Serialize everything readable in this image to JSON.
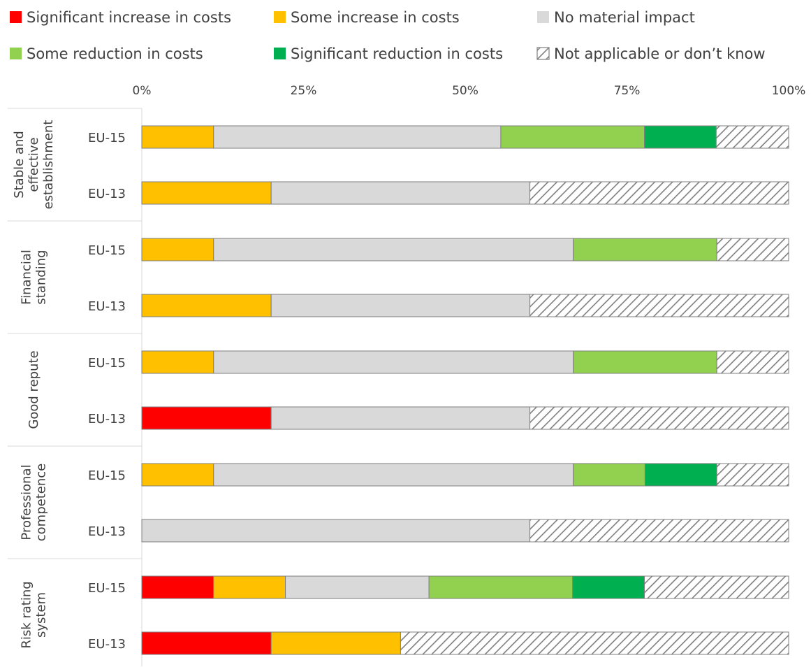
{
  "chart_data": {
    "type": "bar",
    "orientation": "horizontal",
    "stacked": "percent",
    "title": "",
    "xlabel": "",
    "ylabel": "",
    "xlim": [
      0,
      100
    ],
    "x_ticks": [
      "0%",
      "25%",
      "50%",
      "75%",
      "100%"
    ],
    "legend_position": "top",
    "legend": [
      {
        "key": "sig_inc",
        "label": "Significant increase in costs",
        "color": "#ff0000"
      },
      {
        "key": "some_inc",
        "label": "Some increase in costs",
        "color": "#ffc000"
      },
      {
        "key": "no_impact",
        "label": "No material impact",
        "color": "#d9d9d9"
      },
      {
        "key": "some_red",
        "label": "Some reduction in costs",
        "color": "#92d050"
      },
      {
        "key": "sig_red",
        "label": "Significant reduction in costs",
        "color": "#00b050"
      },
      {
        "key": "na",
        "label": "Not applicable or don’t know",
        "color": "#ffffff",
        "pattern": "hatch"
      }
    ],
    "groups": [
      {
        "label": "Stable and effective establishment",
        "rows": [
          {
            "label": "EU-15",
            "values": {
              "sig_inc": 0,
              "some_inc": 11.1,
              "no_impact": 44.4,
              "some_red": 22.2,
              "sig_red": 11.1,
              "na": 11.2
            }
          },
          {
            "label": "EU-13",
            "values": {
              "sig_inc": 0,
              "some_inc": 20,
              "no_impact": 40,
              "some_red": 0,
              "sig_red": 0,
              "na": 40
            }
          }
        ]
      },
      {
        "label": "Financial standing",
        "rows": [
          {
            "label": "EU-15",
            "values": {
              "sig_inc": 0,
              "some_inc": 11.1,
              "no_impact": 55.6,
              "some_red": 22.2,
              "sig_red": 0,
              "na": 11.1
            }
          },
          {
            "label": "EU-13",
            "values": {
              "sig_inc": 0,
              "some_inc": 20,
              "no_impact": 40,
              "some_red": 0,
              "sig_red": 0,
              "na": 40
            }
          }
        ]
      },
      {
        "label": "Good repute",
        "rows": [
          {
            "label": "EU-15",
            "values": {
              "sig_inc": 0,
              "some_inc": 11.1,
              "no_impact": 55.6,
              "some_red": 22.2,
              "sig_red": 0,
              "na": 11.1
            }
          },
          {
            "label": "EU-13",
            "values": {
              "sig_inc": 20,
              "some_inc": 0,
              "no_impact": 40,
              "some_red": 0,
              "sig_red": 0,
              "na": 40
            }
          }
        ]
      },
      {
        "label": "Professional competence",
        "rows": [
          {
            "label": "EU-15",
            "values": {
              "sig_inc": 0,
              "some_inc": 11.1,
              "no_impact": 55.6,
              "some_red": 11.1,
              "sig_red": 11.1,
              "na": 11.1
            }
          },
          {
            "label": "EU-13",
            "values": {
              "sig_inc": 0,
              "some_inc": 0,
              "no_impact": 60,
              "some_red": 0,
              "sig_red": 0,
              "na": 40
            }
          }
        ]
      },
      {
        "label": "Risk rating system",
        "rows": [
          {
            "label": "EU-15",
            "values": {
              "sig_inc": 11.1,
              "some_inc": 11.1,
              "no_impact": 22.2,
              "some_red": 22.2,
              "sig_red": 11.1,
              "na": 22.3
            }
          },
          {
            "label": "EU-13",
            "values": {
              "sig_inc": 20,
              "some_inc": 20,
              "no_impact": 0,
              "some_red": 0,
              "sig_red": 0,
              "na": 60
            }
          }
        ]
      }
    ]
  }
}
